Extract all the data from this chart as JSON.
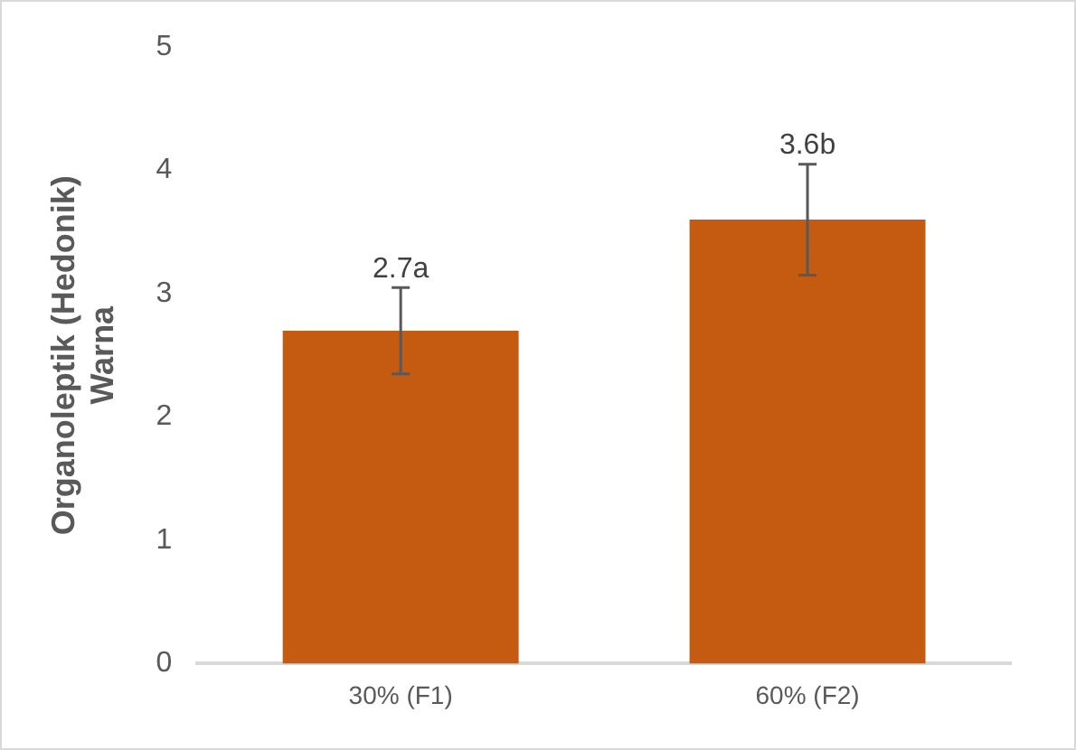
{
  "chart_data": {
    "type": "bar",
    "ylabel": "Organoleptik (Hedonik) Warna",
    "categories": [
      "30% (F1)",
      "60% (F2)"
    ],
    "values": [
      2.7,
      3.6
    ],
    "color": "#c55a11",
    "errors": [
      0.35,
      0.45
    ],
    "value_labels": [
      "2.7a",
      "3.6b"
    ],
    "ylim": [
      0,
      5
    ],
    "yticks": [
      0,
      1,
      2,
      3,
      4,
      5
    ],
    "grid": false,
    "legend": false
  }
}
